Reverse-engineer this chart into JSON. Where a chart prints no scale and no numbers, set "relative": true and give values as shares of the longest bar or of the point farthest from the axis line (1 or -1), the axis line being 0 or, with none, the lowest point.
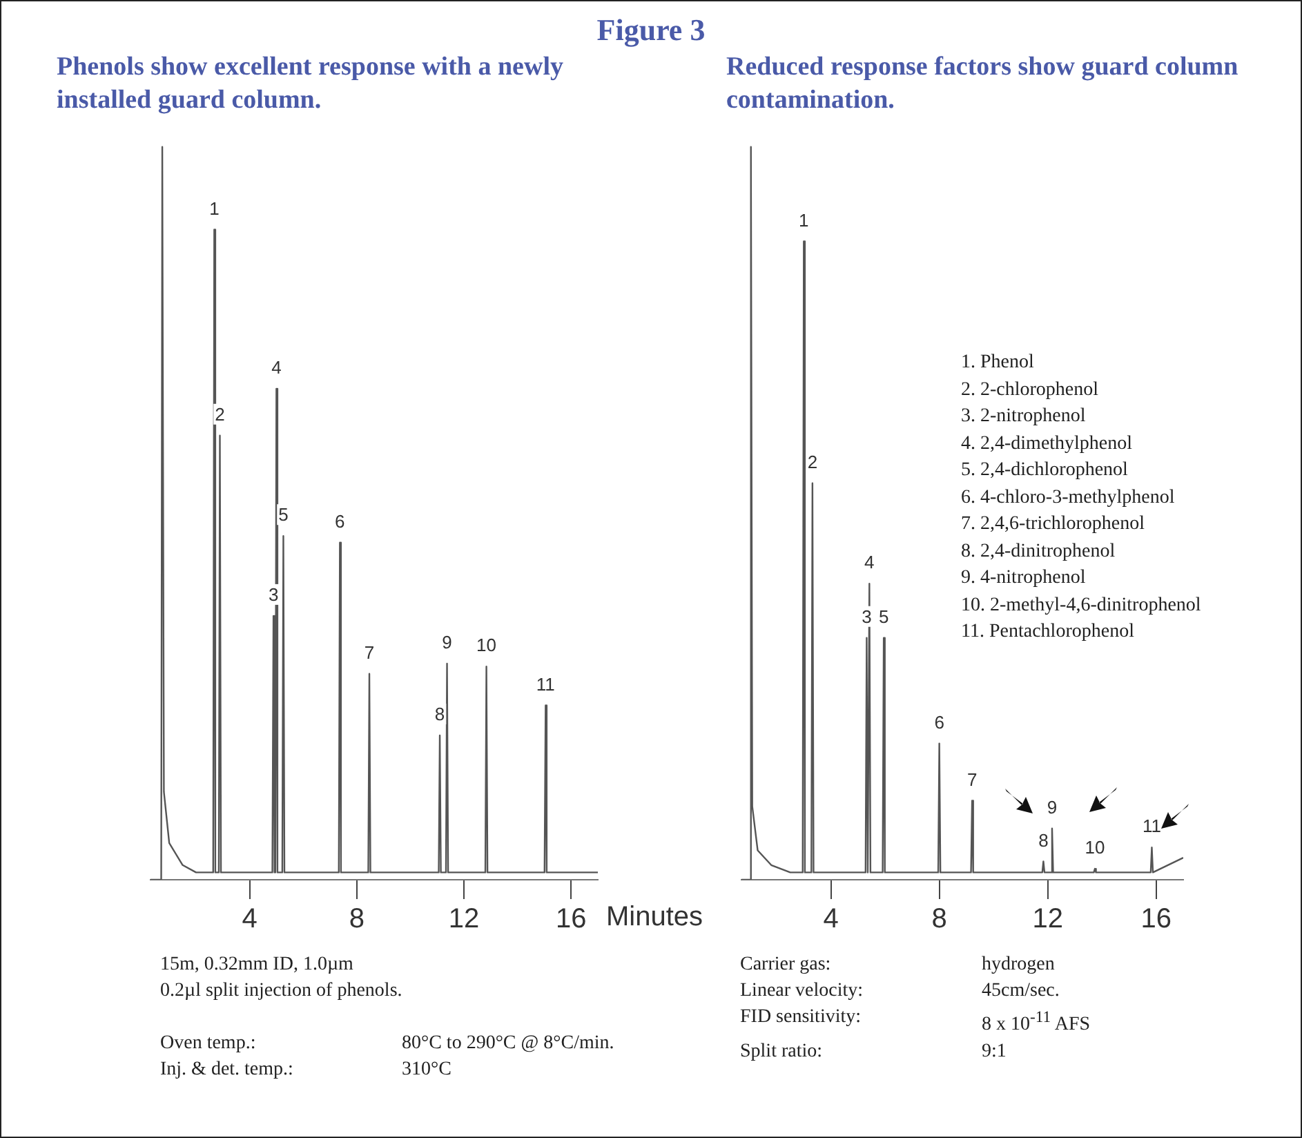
{
  "chart_data": [
    {
      "type": "line",
      "title": "Figure 3",
      "subtitle": "Phenols show excellent response with a newly installed guard column.",
      "relative": true,
      "xlim": [
        0.3,
        17
      ],
      "xticks": [
        4,
        8,
        12,
        16
      ],
      "series": [
        {
          "color": "#555555",
          "x": [
            0.3,
            0.7,
            0.74,
            0.8,
            1.0,
            1.5,
            2.0,
            2.64,
            2.68,
            2.72,
            2.85,
            2.89,
            2.93,
            4.85,
            4.89,
            4.93,
            4.96,
            5.0,
            5.04,
            5.22,
            5.26,
            5.3,
            7.33,
            7.37,
            7.41,
            8.43,
            8.47,
            8.51,
            11.06,
            11.1,
            11.14,
            11.33,
            11.37,
            11.41,
            12.8,
            12.84,
            12.88,
            15.01,
            15.05,
            15.09,
            17.0
          ],
          "values": [
            0,
            0,
            1,
            0.12,
            0.05,
            0.02,
            0.01,
            0.01,
            0.887,
            0.01,
            0.01,
            0.606,
            0.01,
            0.01,
            0.36,
            0.01,
            0.01,
            0.67,
            0.01,
            0.01,
            0.469,
            0.01,
            0.01,
            0.46,
            0.01,
            0.01,
            0.281,
            0.01,
            0.01,
            0.197,
            0.01,
            0.01,
            0.295,
            0.01,
            0.01,
            0.291,
            0.01,
            0.01,
            0.238,
            0.01,
            0.01
          ]
        }
      ],
      "annotations": [
        {
          "text": "1",
          "x": 2.68,
          "y": 0.887
        },
        {
          "text": "2",
          "x": 2.89,
          "y": 0.606
        },
        {
          "text": "3",
          "x": 4.89,
          "y": 0.36
        },
        {
          "text": "4",
          "x": 5.0,
          "y": 0.67
        },
        {
          "text": "5",
          "x": 5.26,
          "y": 0.469
        },
        {
          "text": "6",
          "x": 7.37,
          "y": 0.46
        },
        {
          "text": "7",
          "x": 8.47,
          "y": 0.281
        },
        {
          "text": "8",
          "x": 11.1,
          "y": 0.197
        },
        {
          "text": "9",
          "x": 11.37,
          "y": 0.295
        },
        {
          "text": "10",
          "x": 12.84,
          "y": 0.291
        },
        {
          "text": "11",
          "x": 15.05,
          "y": 0.238
        },
        "15m, 0.32mm ID, 1.0µm",
        "0.2µl split injection of phenols.",
        "Oven temp.:\t80°C to 290°C @ 8°C/min.",
        "Inj. & det. temp.:\t310°C"
      ]
    },
    {
      "type": "line",
      "subtitle": "Reduced response factors show guard column contamination.",
      "xlabel": "Minutes",
      "relative": true,
      "xlim": [
        0.7,
        17
      ],
      "xticks": [
        4,
        8,
        12,
        16
      ],
      "series": [
        {
          "color": "#555555",
          "x": [
            0.7,
            1.01,
            1.05,
            1.1,
            1.3,
            1.8,
            2.5,
            2.96,
            3.0,
            3.04,
            3.28,
            3.32,
            3.36,
            5.28,
            5.32,
            5.36,
            5.38,
            5.42,
            5.46,
            5.91,
            5.95,
            5.99,
            7.96,
            8.0,
            8.04,
            9.17,
            9.21,
            9.25,
            11.8,
            11.84,
            11.88,
            12.12,
            12.16,
            12.2,
            13.7,
            13.74,
            13.78,
            15.8,
            15.84,
            15.88,
            17.0
          ],
          "values": [
            0,
            0,
            1,
            0.1,
            0.04,
            0.02,
            0.01,
            0.01,
            0.871,
            0.01,
            0.01,
            0.541,
            0.01,
            0.01,
            0.33,
            0.01,
            0.01,
            0.404,
            0.01,
            0.01,
            0.33,
            0.01,
            0.01,
            0.186,
            0.01,
            0.01,
            0.108,
            0.01,
            0.01,
            0.025,
            0.01,
            0.01,
            0.07,
            0.01,
            0.01,
            0.015,
            0.01,
            0.01,
            0.044,
            0.01,
            0.03
          ]
        }
      ],
      "annotations": [
        {
          "text": "1",
          "x": 3.0,
          "y": 0.871
        },
        {
          "text": "2",
          "x": 3.32,
          "y": 0.541
        },
        {
          "text": "3",
          "x": 5.32,
          "y": 0.33
        },
        {
          "text": "4",
          "x": 5.42,
          "y": 0.404
        },
        {
          "text": "5",
          "x": 5.95,
          "y": 0.33
        },
        {
          "text": "6",
          "x": 8.0,
          "y": 0.186
        },
        {
          "text": "7",
          "x": 9.21,
          "y": 0.108
        },
        {
          "text": "8",
          "x": 11.84,
          "y": 0.025
        },
        {
          "text": "9",
          "x": 12.16,
          "y": 0.07
        },
        {
          "text": "10",
          "x": 13.74,
          "y": 0.015
        },
        {
          "text": "11",
          "x": 15.84,
          "y": 0.044
        },
        "1. Phenol\n2. 2-chlorophenol\n3. 2-nitrophenol\n4. 2,4-dimethylphenol\n5. 2,4-dichlorophenol\n6. 4-chloro-3-methylphenol\n7. 2,4,6-trichlorophenol\n8. 2,4-dinitrophenol\n9. 4-nitrophenol\n10. 2-methyl-4,6-dinitrophenol\n11. Pentachlorophenol",
        "Carrier gas:\thydrogen",
        "Linear velocity:\t45cm/sec.",
        "FID sensitivity:\t8 x 10$^{-11}$ AFS",
        "Split ratio:\t9:1"
      ]
    }
  ]
}
